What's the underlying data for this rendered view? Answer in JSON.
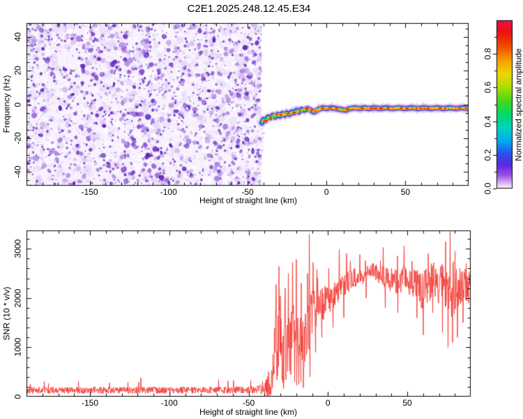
{
  "title": "C2E1.2025.248.12.45.E34",
  "chart_data": [
    {
      "type": "heatmap",
      "title": "C2E1.2025.248.12.45.E34",
      "xlabel": "Height of straight line (km)",
      "ylabel": "Frequency (Hz)",
      "xlim": [
        -190,
        90
      ],
      "ylim": [
        -48.5,
        48.5
      ],
      "xtick_values": [
        -150,
        -100,
        -50,
        0,
        50
      ],
      "xtick_labels": [
        "-150",
        "-100",
        "-50",
        "0",
        "50"
      ],
      "xtick_minor_step": 10,
      "ytick_values": [
        -40,
        -20,
        0,
        20,
        40
      ],
      "ytick_labels": [
        "-40",
        "-20",
        "0",
        "20",
        "40"
      ],
      "ytick_minor_step": 5,
      "noise_region_x": [
        -190,
        -41
      ],
      "noise_palette": [
        "#f1e9fb",
        "#e3d3f7",
        "#cfb3ef",
        "#b48ee6",
        "#9c67dc",
        "#8547d2",
        "#6f2fc6",
        "#5a1cba"
      ],
      "trace": [
        [
          -41,
          -11
        ],
        [
          -40,
          -9
        ],
        [
          -38.5,
          -9.5
        ],
        [
          -37,
          -7.5
        ],
        [
          -35.5,
          -8
        ],
        [
          -34,
          -6.5
        ],
        [
          -32.5,
          -7.5
        ],
        [
          -31,
          -6
        ],
        [
          -29.5,
          -7
        ],
        [
          -28,
          -5.5
        ],
        [
          -26.5,
          -6.5
        ],
        [
          -25,
          -5
        ],
        [
          -23.5,
          -6
        ],
        [
          -22,
          -4.5
        ],
        [
          -20.5,
          -5
        ],
        [
          -19,
          -3.5
        ],
        [
          -17.5,
          -4.5
        ],
        [
          -16,
          -3
        ],
        [
          -14,
          -3.5
        ],
        [
          -12,
          -2.5
        ],
        [
          -10,
          -3.5
        ],
        [
          -8,
          -4.5
        ],
        [
          -6,
          -3.5
        ],
        [
          -4,
          -2.5
        ],
        [
          -2,
          -2
        ],
        [
          0,
          -2.5
        ],
        [
          3,
          -2
        ],
        [
          6,
          -2.5
        ],
        [
          9,
          -3
        ],
        [
          12,
          -3.5
        ],
        [
          15,
          -2.5
        ],
        [
          18,
          -2
        ],
        [
          21,
          -2.5
        ],
        [
          24,
          -2
        ],
        [
          27,
          -2.5
        ],
        [
          30,
          -2
        ],
        [
          34,
          -2.5
        ],
        [
          38,
          -2
        ],
        [
          42,
          -2.5
        ],
        [
          46,
          -2
        ],
        [
          50,
          -2.5
        ],
        [
          54,
          -2
        ],
        [
          58,
          -2.5
        ],
        [
          62,
          -2
        ],
        [
          66,
          -2.5
        ],
        [
          70,
          -2
        ],
        [
          74,
          -2.5
        ],
        [
          78,
          -2
        ],
        [
          82,
          -2.5
        ],
        [
          86,
          -2
        ],
        [
          90,
          -2.5
        ]
      ],
      "ridge_layers": [
        [
          13,
          "#dcc8f6",
          0.5
        ],
        [
          9.5,
          "#b48ae8",
          0.65
        ],
        [
          7,
          "#6a34d4",
          0.9
        ],
        [
          5.2,
          "#2d3fe8",
          1
        ],
        [
          4,
          "#0096e8",
          1
        ],
        [
          3,
          "#00d8b0",
          1
        ],
        [
          2.2,
          "#3ce24c",
          1
        ]
      ],
      "bead_colors": [
        "#eef000",
        "#ff9000",
        "#f01010"
      ],
      "fuzz_colors": [
        "#cfb0f0",
        "#b78ee8"
      ],
      "colorbar": {
        "label": "Normalized spectral amplitude",
        "range": [
          0,
          1
        ],
        "tick_values": [
          0.0,
          0.2,
          0.4,
          0.6,
          0.8
        ],
        "tick_labels": [
          "0.0",
          "0.2",
          "0.4",
          "0.6",
          "0.8"
        ],
        "minor_step": 0.1,
        "stops": [
          [
            0,
            "#ffffff"
          ],
          [
            0.03,
            "#ddb9f3"
          ],
          [
            0.08,
            "#9a4ee2"
          ],
          [
            0.14,
            "#5a28e0"
          ],
          [
            0.21,
            "#2b52ee"
          ],
          [
            0.28,
            "#00aaf0"
          ],
          [
            0.36,
            "#00d4c0"
          ],
          [
            0.44,
            "#00da6a"
          ],
          [
            0.52,
            "#44d81c"
          ],
          [
            0.6,
            "#aade00"
          ],
          [
            0.68,
            "#eed800"
          ],
          [
            0.76,
            "#f9a000"
          ],
          [
            0.84,
            "#f24e00"
          ],
          [
            0.93,
            "#ee1111"
          ],
          [
            1,
            "#e8104c"
          ]
        ]
      }
    },
    {
      "type": "line",
      "xlabel": "Height of straight line (km)",
      "ylabel": "SNR (10 * v/v)",
      "xlim": [
        -190,
        90
      ],
      "ylim": [
        0,
        3370
      ],
      "xtick_values": [
        -150,
        -100,
        -50,
        0,
        50
      ],
      "xtick_labels": [
        "-150",
        "-100",
        "-50",
        "0",
        "50"
      ],
      "xtick_minor_step": 10,
      "ytick_values": [
        0,
        1000,
        2000,
        3000
      ],
      "ytick_labels": [
        "0",
        "1000",
        "2000",
        "3000"
      ],
      "ytick_minor_step": 200,
      "line_color": "#f23730",
      "series": [
        {
          "name": "SNR",
          "baseline": [
            [
              -190,
              130
            ],
            [
              -100,
              130
            ],
            [
              -50,
              135
            ],
            [
              -42,
              140
            ],
            [
              -38,
              160
            ],
            [
              -36,
              280
            ],
            [
              -34,
              700
            ],
            [
              -32,
              1000
            ],
            [
              -30,
              1050
            ],
            [
              -28,
              1000
            ],
            [
              -26,
              1100
            ],
            [
              -24,
              1200
            ],
            [
              -22,
              1100
            ],
            [
              -20,
              1000
            ],
            [
              -18,
              950
            ],
            [
              -16,
              900
            ],
            [
              -14,
              1050
            ],
            [
              -13,
              1400
            ],
            [
              -11,
              1600
            ],
            [
              -9,
              1750
            ],
            [
              -7,
              1800
            ],
            [
              -5,
              1850
            ],
            [
              -3,
              1900
            ],
            [
              -1,
              1950
            ],
            [
              1,
              2000
            ],
            [
              3,
              2050
            ],
            [
              5,
              2100
            ],
            [
              8,
              2200
            ],
            [
              12,
              2300
            ],
            [
              16,
              2400
            ],
            [
              20,
              2450
            ],
            [
              24,
              2500
            ],
            [
              28,
              2520
            ],
            [
              32,
              2500
            ],
            [
              36,
              2400
            ],
            [
              40,
              2350
            ],
            [
              44,
              2300
            ],
            [
              48,
              2400
            ],
            [
              52,
              2350
            ],
            [
              56,
              2250
            ],
            [
              60,
              2150
            ],
            [
              64,
              2300
            ],
            [
              68,
              2350
            ],
            [
              72,
              2250
            ],
            [
              76,
              2150
            ],
            [
              80,
              2250
            ],
            [
              84,
              2200
            ],
            [
              88,
              2300
            ],
            [
              90,
              2300
            ]
          ],
          "jitter": [
            [
              -190,
              70
            ],
            [
              -60,
              70
            ],
            [
              -45,
              80
            ],
            [
              -40,
              120
            ],
            [
              -37,
              400
            ],
            [
              -34,
              700
            ],
            [
              -28,
              850
            ],
            [
              -23,
              900
            ],
            [
              -18,
              850
            ],
            [
              -15,
              750
            ],
            [
              -12,
              600
            ],
            [
              -9,
              450
            ],
            [
              -6,
              400
            ],
            [
              -3,
              350
            ],
            [
              0,
              320
            ],
            [
              4,
              280
            ],
            [
              8,
              250
            ],
            [
              12,
              220
            ],
            [
              16,
              200
            ],
            [
              24,
              190
            ],
            [
              32,
              200
            ],
            [
              40,
              250
            ],
            [
              48,
              280
            ],
            [
              56,
              350
            ],
            [
              62,
              420
            ],
            [
              68,
              380
            ],
            [
              72,
              450
            ],
            [
              76,
              700
            ],
            [
              80,
              550
            ],
            [
              84,
              400
            ],
            [
              88,
              350
            ],
            [
              90,
              350
            ]
          ],
          "spikes": [
            [
              -33,
              1900
            ],
            [
              -31,
              2640
            ],
            [
              -29,
              350
            ],
            [
              -27,
              2200
            ],
            [
              -25,
              2500
            ],
            [
              -22.5,
              2720
            ],
            [
              -21,
              300
            ],
            [
              -20,
              2780
            ],
            [
              -18.5,
              250
            ],
            [
              -17,
              2300
            ],
            [
              -15.5,
              180
            ],
            [
              -13,
              2500
            ],
            [
              -11.5,
              400
            ],
            [
              -9.5,
              2720
            ],
            [
              -8,
              900
            ],
            [
              -6.5,
              2400
            ],
            [
              -4,
              1200
            ],
            [
              0.5,
              2600
            ],
            [
              3,
              1400
            ],
            [
              7,
              2980
            ],
            [
              10,
              1600
            ],
            [
              14,
              2750
            ],
            [
              20,
              2880
            ],
            [
              24,
              2000
            ],
            [
              28,
              2700
            ],
            [
              33,
              2760
            ],
            [
              36,
              1800
            ],
            [
              40,
              2600
            ],
            [
              44,
              1700
            ],
            [
              48,
              3060
            ],
            [
              50.5,
              2200
            ],
            [
              53,
              2750
            ],
            [
              56,
              1600
            ],
            [
              58,
              2500
            ],
            [
              60,
              1250
            ],
            [
              63,
              2900
            ],
            [
              66,
              1700
            ],
            [
              69,
              2500
            ],
            [
              72,
              1300
            ],
            [
              74,
              3140
            ],
            [
              75.5,
              1000
            ],
            [
              77,
              3350
            ],
            [
              78.5,
              1100
            ],
            [
              80,
              2950
            ],
            [
              81.5,
              1200
            ],
            [
              83,
              2600
            ],
            [
              85,
              1500
            ],
            [
              87,
              2700
            ],
            [
              88.5,
              1900
            ]
          ]
        }
      ]
    }
  ]
}
